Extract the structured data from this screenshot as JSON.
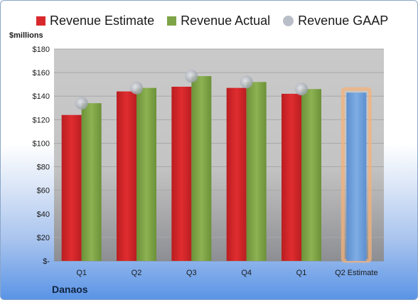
{
  "company": "Danaos",
  "unit_label": "$millions",
  "legend": [
    {
      "label": "Revenue Estimate",
      "color": "#d9282b",
      "shape": "square"
    },
    {
      "label": "Revenue Actual",
      "color": "#7ea448",
      "shape": "square"
    },
    {
      "label": "Revenue GAAP",
      "color": "#b9bec8",
      "shape": "circle"
    }
  ],
  "chart_data": {
    "type": "bar",
    "categories": [
      "Q1",
      "Q2",
      "Q3",
      "Q4",
      "Q1",
      "Q2 Estimate"
    ],
    "series": [
      {
        "name": "Revenue Estimate",
        "values": [
          124,
          144,
          148,
          147,
          142,
          null
        ],
        "color": "#d9282b"
      },
      {
        "name": "Revenue Actual",
        "values": [
          134,
          147,
          157,
          152,
          146,
          null
        ],
        "color": "#7ea448"
      },
      {
        "name": "Revenue GAAP",
        "values": [
          134,
          147,
          157,
          152,
          146,
          null
        ],
        "color": "#b9bec8",
        "marker": "circle"
      },
      {
        "name": "Q2 Estimate",
        "values": [
          null,
          null,
          null,
          null,
          null,
          143
        ],
        "color": "#6f9fd8",
        "highlight": "#f4b27a"
      }
    ],
    "ylim": [
      0,
      180
    ],
    "yticks": [
      0,
      20,
      40,
      60,
      80,
      100,
      120,
      140,
      160,
      180
    ],
    "ytick_labels": [
      "$-",
      "$20",
      "$40",
      "$60",
      "$80",
      "$100",
      "$120",
      "$140",
      "$160",
      "$180"
    ],
    "ylabel": "$millions",
    "grid": true
  }
}
